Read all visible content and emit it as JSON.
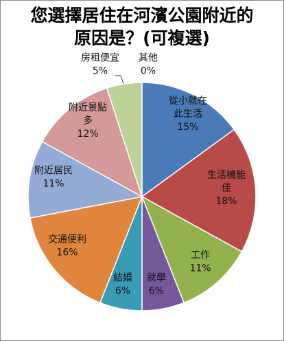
{
  "chart_data": {
    "type": "pie",
    "title_lines": [
      "您選擇居住在河濱公園附近的",
      "原因是？(可複選)"
    ],
    "slices": [
      {
        "label_lines": [
          "從小就在",
          "此生活"
        ],
        "value": 15,
        "value_text": "15%",
        "color": "#4a7ab8"
      },
      {
        "label_lines": [
          "生活機能",
          "佳"
        ],
        "value": 18,
        "value_text": "18%",
        "color": "#b84a48"
      },
      {
        "label_lines": [
          "工作"
        ],
        "value": 11,
        "value_text": "11%",
        "color": "#93b24d"
      },
      {
        "label_lines": [
          "就學"
        ],
        "value": 6,
        "value_text": "6%",
        "color": "#76589a"
      },
      {
        "label_lines": [
          "結婚"
        ],
        "value": 6,
        "value_text": "6%",
        "color": "#3a9bb5"
      },
      {
        "label_lines": [
          "交通便利"
        ],
        "value": 16,
        "value_text": "16%",
        "color": "#e1843c"
      },
      {
        "label_lines": [
          "附近居民"
        ],
        "value": 11,
        "value_text": "11%",
        "color": "#94abd6"
      },
      {
        "label_lines": [
          "附近景點",
          "多"
        ],
        "value": 12,
        "value_text": "12%",
        "color": "#d49a9a"
      },
      {
        "label_lines": [
          "房租便宜"
        ],
        "value": 5,
        "value_text": "5%",
        "color": "#bdd29a"
      },
      {
        "label_lines": [
          "其他"
        ],
        "value": 0,
        "value_text": "0%",
        "color": "#b0a0c8"
      }
    ]
  }
}
